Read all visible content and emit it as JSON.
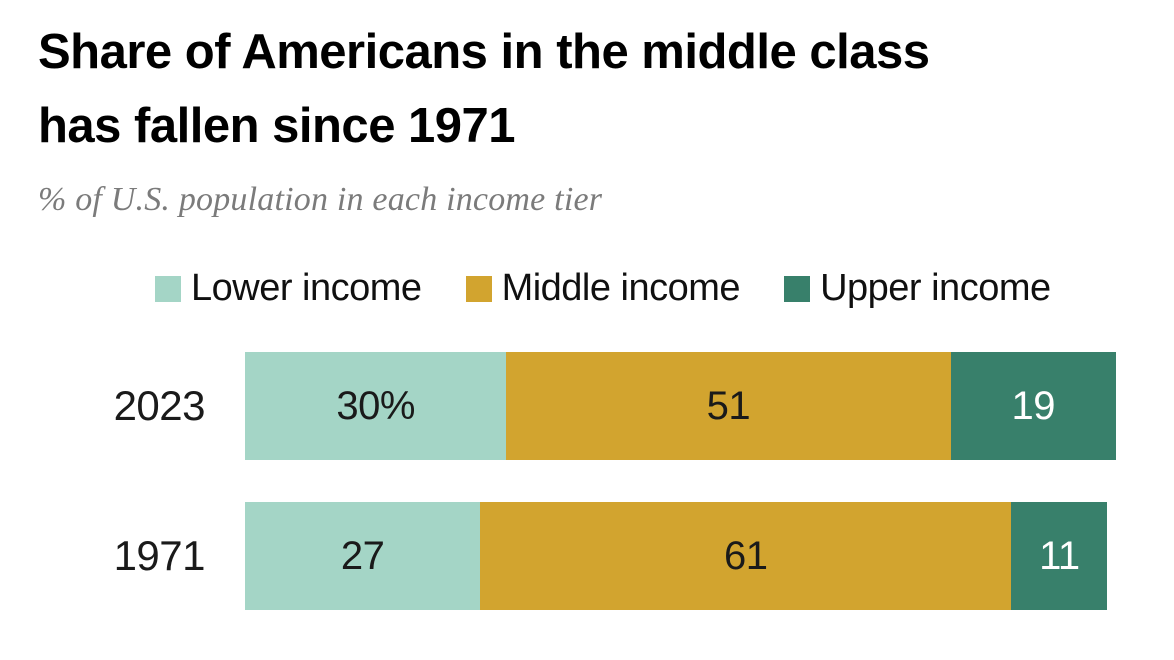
{
  "header": {
    "title": "Share of Americans in the middle class has fallen since 1971",
    "title_lines": [
      "Share of Americans in the middle class",
      "has fallen since 1971"
    ],
    "subtitle": "% of U.S. population in each income tier"
  },
  "colors": {
    "lower_income": "#a4d5c6",
    "middle_income": "#d2a42f",
    "upper_income": "#38806b",
    "title_text": "#000000",
    "subtitle_text": "#7b7b7b",
    "value_text_dark": "#1a1a1a",
    "value_text_light": "#ffffff",
    "background": "#ffffff"
  },
  "legend": {
    "items": [
      {
        "label": "Lower income",
        "color": "#a4d5c6"
      },
      {
        "label": "Middle income",
        "color": "#d2a42f"
      },
      {
        "label": "Upper income",
        "color": "#38806b"
      }
    ]
  },
  "chart_data": {
    "type": "bar",
    "orientation": "horizontal-stacked",
    "title": "Share of Americans in the middle class has fallen since 1971",
    "subtitle": "% of U.S. population in each income tier",
    "categories": [
      "2023",
      "1971"
    ],
    "series": [
      {
        "name": "Lower income",
        "values": [
          30,
          27
        ],
        "color": "#a4d5c6"
      },
      {
        "name": "Middle income",
        "values": [
          51,
          61
        ],
        "color": "#d2a42f"
      },
      {
        "name": "Upper income",
        "values": [
          19,
          11
        ],
        "color": "#38806b"
      }
    ],
    "value_labels": [
      [
        "30%",
        "51",
        "19"
      ],
      [
        "27",
        "61",
        "11"
      ]
    ],
    "xlim": [
      0,
      100
    ],
    "grid": false,
    "legend_position": "top"
  },
  "rows": [
    {
      "year": "2023",
      "segments": [
        {
          "label": "30%",
          "value": 30,
          "color": "#a4d5c6",
          "text_color": "#1a1a1a"
        },
        {
          "label": "51",
          "value": 51,
          "color": "#d2a42f",
          "text_color": "#1a1a1a"
        },
        {
          "label": "19",
          "value": 19,
          "color": "#38806b",
          "text_color": "#ffffff"
        }
      ]
    },
    {
      "year": "1971",
      "segments": [
        {
          "label": "27",
          "value": 27,
          "color": "#a4d5c6",
          "text_color": "#1a1a1a"
        },
        {
          "label": "61",
          "value": 61,
          "color": "#d2a42f",
          "text_color": "#1a1a1a"
        },
        {
          "label": "11",
          "value": 11,
          "color": "#38806b",
          "text_color": "#ffffff"
        }
      ]
    }
  ]
}
